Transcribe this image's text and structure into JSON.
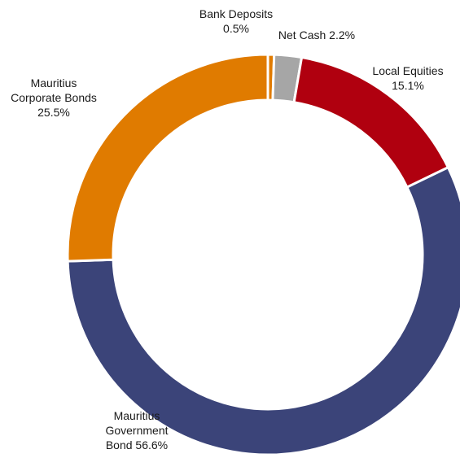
{
  "chart_data": {
    "type": "pie",
    "variant": "donut",
    "categories": [
      "Bank Deposits",
      "Net Cash",
      "Local Equities",
      "Mauritius Government Bond",
      "Mauritius Corporate Bonds"
    ],
    "values": [
      0.5,
      2.2,
      15.1,
      56.6,
      25.5
    ],
    "unit": "%",
    "colors": [
      "#E07B00",
      "#A6A6A6",
      "#B0000F",
      "#3B4479",
      "#E07B00"
    ],
    "labels": [
      [
        "Bank Deposits",
        "0.5%"
      ],
      [
        "Net Cash 2.2%"
      ],
      [
        "Local Equities",
        "15.1%"
      ],
      [
        "Mauritius",
        "Government",
        "Bond 56.6%"
      ],
      [
        "Mauritius",
        "Corporate Bonds",
        "25.5%"
      ]
    ],
    "legend": "none"
  }
}
